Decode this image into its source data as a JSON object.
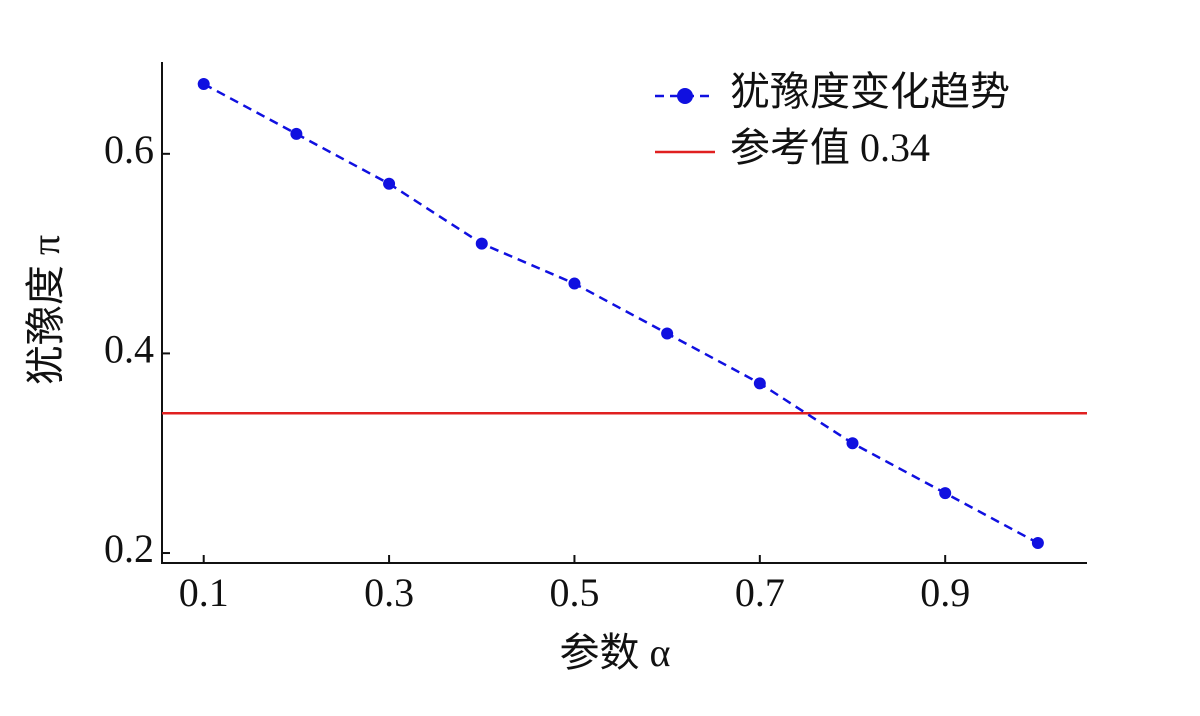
{
  "chart_data": {
    "type": "line",
    "xlabel": "参数 α",
    "ylabel": "犹豫度 π",
    "x": [
      0.1,
      0.2,
      0.3,
      0.4,
      0.5,
      0.6,
      0.7,
      0.8,
      0.9,
      1.0
    ],
    "series": [
      {
        "name": "犹豫度变化趋势",
        "color": "#1010e0",
        "values": [
          0.67,
          0.62,
          0.57,
          0.51,
          0.47,
          0.42,
          0.37,
          0.31,
          0.26,
          0.21
        ]
      }
    ],
    "reference_lines": [
      {
        "name": "参考值 0.34",
        "value": 0.34,
        "color": "#e02020"
      }
    ],
    "xlim": [
      0.055,
      1.053
    ],
    "ylim": [
      0.19,
      0.692
    ],
    "xticks": [
      0.1,
      0.3,
      0.5,
      0.7,
      0.9
    ],
    "yticks": [
      0.2,
      0.4,
      0.6
    ],
    "legend": "upper right"
  }
}
